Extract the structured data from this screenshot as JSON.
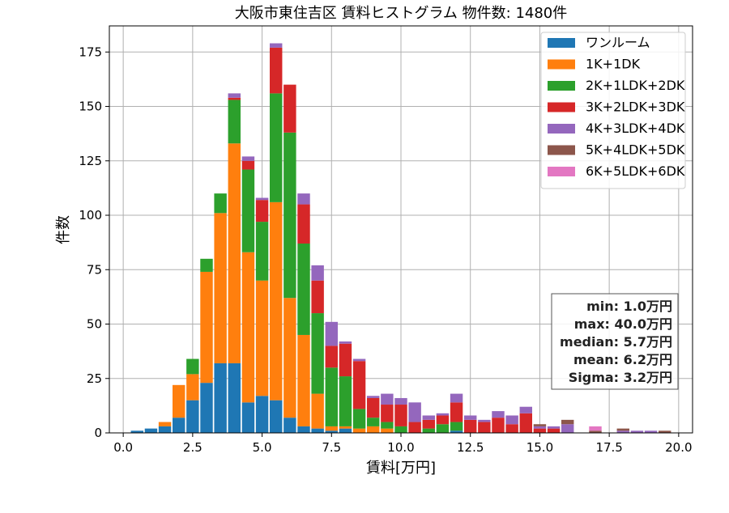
{
  "chart_data": {
    "type": "bar",
    "stacked": true,
    "title": "大阪市東住吉区 賃料ヒストグラム 物件数: 1480件",
    "xlabel": "賃料[万円]",
    "ylabel": "件数",
    "xlim": [
      -0.5,
      20.5
    ],
    "ylim": [
      0,
      187
    ],
    "xticks": [
      0.0,
      2.5,
      5.0,
      7.5,
      10.0,
      12.5,
      15.0,
      17.5,
      20.0
    ],
    "xtick_labels": [
      "0.0",
      "2.5",
      "5.0",
      "7.5",
      "10.0",
      "12.5",
      "15.0",
      "17.5",
      "20.0"
    ],
    "yticks": [
      0,
      25,
      50,
      75,
      100,
      125,
      150,
      175
    ],
    "ytick_labels": [
      "0",
      "25",
      "50",
      "75",
      "100",
      "125",
      "150",
      "175"
    ],
    "grid": true,
    "legend_position": "top-right",
    "bin_width": 0.5,
    "x": [
      0.5,
      1.0,
      1.5,
      2.0,
      2.5,
      3.0,
      3.5,
      4.0,
      4.5,
      5.0,
      5.5,
      6.0,
      6.5,
      7.0,
      7.5,
      8.0,
      8.5,
      9.0,
      9.5,
      10.0,
      10.5,
      11.0,
      11.5,
      12.0,
      12.5,
      13.0,
      13.5,
      14.0,
      14.5,
      15.0,
      15.5,
      16.0,
      16.5,
      17.0,
      17.5,
      18.0,
      18.5,
      19.0,
      19.5
    ],
    "series": [
      {
        "name": "ワンルーム",
        "color": "#1f77b4",
        "values": [
          1,
          2,
          3,
          7,
          15,
          23,
          32,
          32,
          14,
          17,
          15,
          7,
          3,
          2,
          1,
          2,
          0,
          0,
          0,
          0,
          0,
          0,
          0,
          1,
          0,
          0,
          0,
          0,
          0,
          0,
          0,
          0,
          0,
          0,
          0,
          0,
          0,
          0,
          0
        ]
      },
      {
        "name": "1K+1DK",
        "color": "#ff7f0e",
        "values": [
          0,
          0,
          2,
          15,
          12,
          51,
          69,
          101,
          69,
          53,
          91,
          55,
          42,
          16,
          2,
          1,
          2,
          3,
          2,
          0,
          0,
          0,
          0,
          0,
          0,
          0,
          0,
          0,
          0,
          0,
          0,
          0,
          0,
          0,
          0,
          0,
          0,
          0,
          0
        ]
      },
      {
        "name": "2K+1LDK+2DK",
        "color": "#2ca02c",
        "values": [
          0,
          0,
          0,
          0,
          7,
          6,
          9,
          20,
          38,
          27,
          50,
          76,
          42,
          37,
          27,
          23,
          9,
          4,
          3,
          3,
          0,
          2,
          4,
          4,
          0,
          0,
          0,
          0,
          0,
          0,
          0,
          0,
          0,
          0,
          0,
          0,
          0,
          0,
          0
        ]
      },
      {
        "name": "3K+2LDK+3DK",
        "color": "#d62728",
        "values": [
          0,
          0,
          0,
          0,
          0,
          0,
          0,
          1,
          4,
          10,
          21,
          22,
          18,
          15,
          10,
          15,
          22,
          9,
          8,
          10,
          5,
          4,
          4,
          9,
          6,
          5,
          7,
          4,
          9,
          2,
          2,
          0,
          0,
          0,
          0,
          0,
          0,
          0,
          0
        ]
      },
      {
        "name": "4K+3LDK+4DK",
        "color": "#9467bd",
        "values": [
          0,
          0,
          0,
          0,
          0,
          0,
          0,
          2,
          2,
          1,
          2,
          0,
          5,
          7,
          11,
          1,
          1,
          1,
          5,
          3,
          9,
          2,
          1,
          4,
          2,
          1,
          3,
          4,
          3,
          1,
          1,
          4,
          0,
          0,
          0,
          1,
          1,
          1,
          0
        ]
      },
      {
        "name": "5K+4LDK+5DK",
        "color": "#8c564b",
        "values": [
          0,
          0,
          0,
          0,
          0,
          0,
          0,
          0,
          0,
          0,
          0,
          0,
          0,
          0,
          0,
          0,
          0,
          0,
          0,
          0,
          0,
          0,
          0,
          0,
          0,
          0,
          0,
          0,
          0,
          1,
          0,
          2,
          0,
          1,
          0,
          1,
          0,
          0,
          1
        ]
      },
      {
        "name": "6K+5LDK+6DK",
        "color": "#e377c2",
        "values": [
          0,
          0,
          0,
          0,
          0,
          0,
          0,
          0,
          0,
          0,
          0,
          0,
          0,
          0,
          0,
          0,
          0,
          0,
          0,
          0,
          0,
          0,
          0,
          0,
          0,
          0,
          0,
          0,
          0,
          0,
          0,
          0,
          0,
          2,
          0,
          0,
          0,
          0,
          0
        ]
      }
    ],
    "stats": {
      "min": "min: 1.0万円",
      "max": "max: 40.0万円",
      "median": "median: 5.7万円",
      "mean": "mean: 6.2万円",
      "sigma": "Sigma: 3.2万円"
    }
  },
  "colors": {
    "grid": "#b0b0b0",
    "axis": "#000000",
    "legend_border": "#cccccc",
    "stats_border": "#555555"
  }
}
